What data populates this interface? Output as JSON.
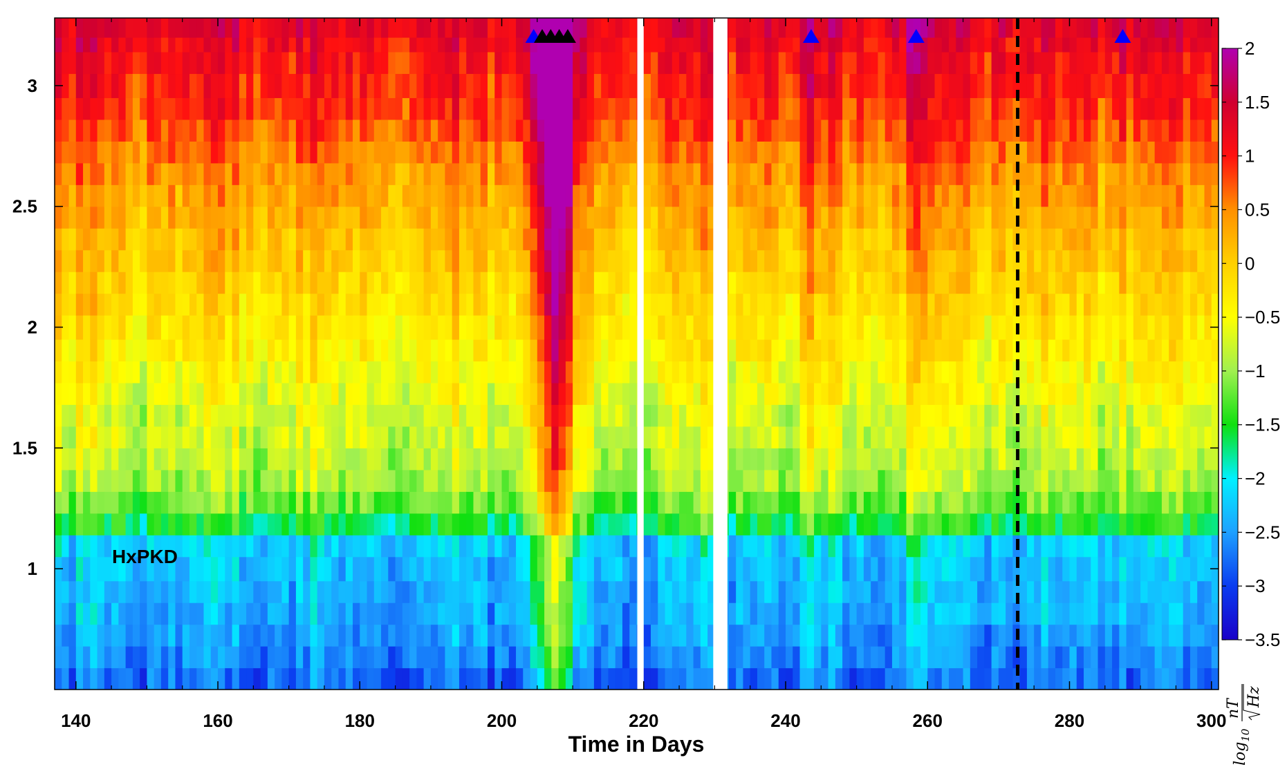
{
  "chart_data": {
    "type": "heatmap",
    "title": "",
    "xlabel": "Time in Days",
    "ylabel": "",
    "annotation": "HxPKD",
    "xlim": [
      137,
      301
    ],
    "ylim": [
      0.5,
      3.28
    ],
    "x_ticks": [
      140,
      160,
      180,
      200,
      220,
      240,
      260,
      280,
      300
    ],
    "x_tick_labels": [
      "140",
      "160",
      "180",
      "200",
      "220",
      "240",
      "260",
      "280",
      "300"
    ],
    "y_ticks": [
      1,
      1.5,
      2,
      2.5,
      3
    ],
    "y_tick_labels": [
      "1",
      "1.5",
      "2",
      "2.5",
      "3"
    ],
    "colorbar": {
      "label": "log10 nT/sqrt(Hz)",
      "label_parts": {
        "log": "log",
        "sub": "10",
        "num": "nT",
        "den": "Hz"
      },
      "range": [
        -3.5,
        2
      ],
      "ticks": [
        2,
        1.5,
        1,
        0.5,
        0,
        -0.5,
        -1,
        -1.5,
        -2,
        -2.5,
        -3,
        -3.5
      ],
      "tick_labels": [
        "2",
        "1.5",
        "1",
        "0.5",
        "0",
        "−0.5",
        "−1",
        "−1.5",
        "−2",
        "−2.5",
        "−3",
        "−3.5"
      ]
    },
    "frequency_bands": [
      {
        "y0": 0.5,
        "y1": 0.59,
        "base": -2.75
      },
      {
        "y0": 0.59,
        "y1": 0.68,
        "base": -2.6
      },
      {
        "y0": 0.68,
        "y1": 0.77,
        "base": -2.5
      },
      {
        "y0": 0.77,
        "y1": 0.86,
        "base": -2.4
      },
      {
        "y0": 0.86,
        "y1": 0.95,
        "base": -2.35
      },
      {
        "y0": 0.95,
        "y1": 1.05,
        "base": -2.3
      },
      {
        "y0": 1.05,
        "y1": 1.14,
        "base": -2.2
      },
      {
        "y0": 1.14,
        "y1": 1.23,
        "base": -1.55
      },
      {
        "y0": 1.23,
        "y1": 1.32,
        "base": -1.2
      },
      {
        "y0": 1.32,
        "y1": 1.41,
        "base": -0.95
      },
      {
        "y0": 1.41,
        "y1": 1.5,
        "base": -0.85
      },
      {
        "y0": 1.5,
        "y1": 1.59,
        "base": -0.75
      },
      {
        "y0": 1.59,
        "y1": 1.68,
        "base": -0.7
      },
      {
        "y0": 1.68,
        "y1": 1.77,
        "base": -0.55
      },
      {
        "y0": 1.77,
        "y1": 1.86,
        "base": -0.45
      },
      {
        "y0": 1.86,
        "y1": 1.95,
        "base": -0.35
      },
      {
        "y0": 1.95,
        "y1": 2.05,
        "base": -0.25
      },
      {
        "y0": 2.05,
        "y1": 2.14,
        "base": -0.15
      },
      {
        "y0": 2.14,
        "y1": 2.23,
        "base": -0.05
      },
      {
        "y0": 2.23,
        "y1": 2.32,
        "base": 0.05
      },
      {
        "y0": 2.32,
        "y1": 2.41,
        "base": 0.15
      },
      {
        "y0": 2.41,
        "y1": 2.5,
        "base": 0.25
      },
      {
        "y0": 2.5,
        "y1": 2.59,
        "base": 0.35
      },
      {
        "y0": 2.59,
        "y1": 2.68,
        "base": 0.45
      },
      {
        "y0": 2.68,
        "y1": 2.77,
        "base": 0.6
      },
      {
        "y0": 2.77,
        "y1": 2.86,
        "base": 0.75
      },
      {
        "y0": 2.86,
        "y1": 2.95,
        "base": 0.9
      },
      {
        "y0": 2.95,
        "y1": 3.05,
        "base": 1.0
      },
      {
        "y0": 3.05,
        "y1": 3.14,
        "base": 1.1
      },
      {
        "y0": 3.14,
        "y1": 3.2,
        "base": 1.2
      },
      {
        "y0": 3.2,
        "y1": 3.28,
        "base": 1.35
      }
    ],
    "time_start": 137,
    "time_end": 301,
    "time_step": 1,
    "data_gaps": [
      [
        219.1,
        220.0
      ],
      [
        229.8,
        231.8
      ]
    ],
    "events": [
      {
        "day": 206.5,
        "y_offset": 0.0,
        "strength": 1.3,
        "width": 2.5
      },
      {
        "day": 208.5,
        "y_offset": 0.0,
        "strength": 1.4,
        "width": 2.0
      },
      {
        "day": 243.5,
        "y_offset": 0.0,
        "strength": 0.5,
        "width": 1.0
      },
      {
        "day": 258.5,
        "y_offset": 0.0,
        "strength": 0.6,
        "width": 1.5
      },
      {
        "day": 287.5,
        "y_offset": 0.0,
        "strength": 0.45,
        "width": 1.0
      }
    ],
    "markers": [
      {
        "x": 204.5,
        "color": "#0000ff"
      },
      {
        "x": 205.7,
        "color": "#000000"
      },
      {
        "x": 206.9,
        "color": "#000000"
      },
      {
        "x": 208.1,
        "color": "#000000"
      },
      {
        "x": 209.3,
        "color": "#000000"
      },
      {
        "x": 243.6,
        "color": "#0000ff"
      },
      {
        "x": 258.4,
        "color": "#0000ff"
      },
      {
        "x": 287.5,
        "color": "#0000ff"
      }
    ],
    "dashed_line": {
      "x": 272.7,
      "color": "#000000"
    },
    "colormap": [
      {
        "v": -3.5,
        "color": "#1a00c8"
      },
      {
        "v": -3.0,
        "color": "#0a3cf0"
      },
      {
        "v": -2.5,
        "color": "#1ea0ff"
      },
      {
        "v": -2.0,
        "color": "#00f0ff"
      },
      {
        "v": -1.5,
        "color": "#10e010"
      },
      {
        "v": -1.0,
        "color": "#a0f050"
      },
      {
        "v": -0.5,
        "color": "#ffff00"
      },
      {
        "v": 0.0,
        "color": "#ffd000"
      },
      {
        "v": 0.5,
        "color": "#ff9000"
      },
      {
        "v": 1.0,
        "color": "#ff1010"
      },
      {
        "v": 1.5,
        "color": "#d00030"
      },
      {
        "v": 2.0,
        "color": "#b000b0"
      }
    ]
  }
}
